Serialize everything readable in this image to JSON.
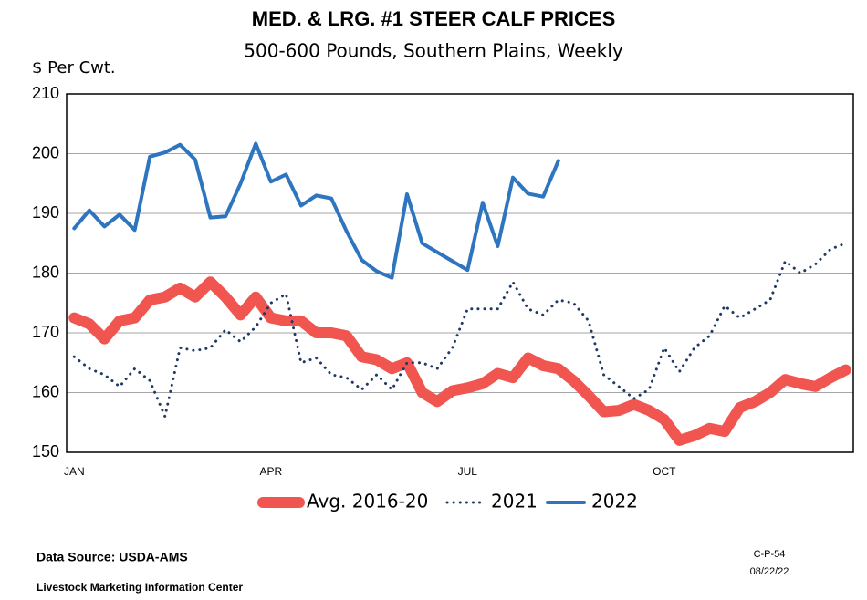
{
  "chart_data": {
    "type": "line",
    "title": "MED. & LRG. #1 STEER CALF PRICES",
    "subtitle": "500-600 Pounds, Southern Plains, Weekly",
    "y_label": "$ Per Cwt.",
    "categories": [
      "JAN",
      null,
      null,
      null,
      null,
      null,
      null,
      null,
      null,
      null,
      null,
      null,
      null,
      "APR",
      null,
      null,
      null,
      null,
      null,
      null,
      null,
      null,
      null,
      null,
      null,
      null,
      "JUL",
      null,
      null,
      null,
      null,
      null,
      null,
      null,
      null,
      null,
      null,
      null,
      null,
      "OCT",
      null,
      null,
      null,
      null,
      null,
      null,
      null,
      null,
      null,
      null,
      null,
      null
    ],
    "ylim": [
      150,
      210
    ],
    "yticks": [
      150,
      160,
      170,
      180,
      190,
      200,
      210
    ],
    "grid": true,
    "legend": "bottom",
    "series": [
      {
        "name": "Avg. 2016-20",
        "color": "#f05550",
        "linestyle": "solid",
        "values": [
          172.5,
          171.5,
          169,
          172,
          172.5,
          175.5,
          176,
          177.5,
          176,
          178.5,
          176,
          173,
          176,
          172.5,
          172,
          172,
          170,
          170,
          169.5,
          166,
          165.5,
          164,
          165,
          160,
          158.5,
          160.3,
          160.8,
          161.5,
          163.2,
          162.5,
          165.8,
          164.5,
          164,
          162,
          159.5,
          156.8,
          157,
          158,
          157,
          155.5,
          152,
          152.8,
          154,
          153.5,
          157.5,
          158.5,
          160,
          162.2,
          161.5,
          161,
          162.5,
          163.8
        ]
      },
      {
        "name": "2021",
        "color": "#1f3864",
        "linestyle": "dotted",
        "values": [
          166,
          164,
          163,
          161,
          164,
          162,
          156,
          167.5,
          167,
          167.5,
          170.5,
          168.5,
          171,
          175,
          176.5,
          165,
          165.8,
          163,
          162.5,
          160.5,
          163,
          160.5,
          165,
          165,
          164,
          167.5,
          174,
          174,
          174,
          178.5,
          174,
          173,
          175.5,
          175,
          172,
          163,
          161,
          159,
          160.5,
          167.5,
          163.5,
          167.5,
          169.5,
          174.5,
          172.5,
          174,
          175.5,
          182,
          180,
          181.5,
          184,
          185
        ]
      },
      {
        "name": "2022",
        "color": "#2e75c0",
        "linestyle": "solid",
        "values": [
          187.5,
          190.5,
          187.8,
          189.8,
          187.2,
          199.5,
          200.2,
          201.5,
          199,
          189.3,
          189.5,
          195,
          201.7,
          195.3,
          196.5,
          191.3,
          193,
          192.5,
          187,
          182.2,
          180.3,
          179.2,
          193.2,
          185,
          183.5,
          182,
          180.5,
          191.8,
          184.5,
          196,
          193.3,
          192.8,
          198.8,
          null,
          null,
          null,
          null,
          null,
          null,
          null,
          null,
          null,
          null,
          null,
          null,
          null,
          null,
          null,
          null,
          null,
          null,
          null
        ]
      }
    ],
    "source": "Data Source:  USDA-AMS",
    "organization": "Livestock Marketing Information Center",
    "chart_id": "C-P-54",
    "date": "08/22/22"
  }
}
